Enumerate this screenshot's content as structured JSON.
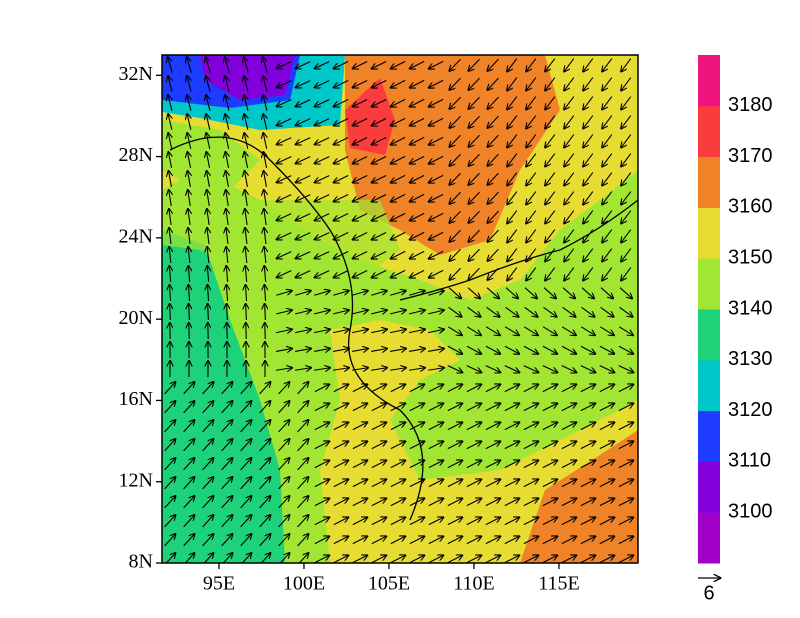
{
  "map": {
    "lat_ticks": [
      {
        "value": 8,
        "label": "8N"
      },
      {
        "value": 12,
        "label": "12N"
      },
      {
        "value": 16,
        "label": "16N"
      },
      {
        "value": 20,
        "label": "20N"
      },
      {
        "value": 24,
        "label": "24N"
      },
      {
        "value": 28,
        "label": "28N"
      },
      {
        "value": 32,
        "label": "32N"
      }
    ],
    "lon_ticks": [
      {
        "value": 95,
        "label": "95E"
      },
      {
        "value": 100,
        "label": "100E"
      },
      {
        "value": 105,
        "label": "105E"
      },
      {
        "value": 110,
        "label": "110E"
      },
      {
        "value": 115,
        "label": "115E"
      }
    ],
    "lat_range": [
      8,
      33
    ],
    "lon_range": [
      91.65,
      119.65
    ],
    "colorbar": {
      "levels": [
        3100,
        3110,
        3120,
        3130,
        3140,
        3150,
        3160,
        3170,
        3180
      ],
      "colors": [
        "#a000c8",
        "#8200dc",
        "#1e3cff",
        "#00c8c8",
        "#1ed27a",
        "#a0e632",
        "#e6dc32",
        "#f08228",
        "#fa3c3c",
        "#f0147e"
      ]
    },
    "reference_vector": {
      "label": "6"
    }
  }
}
